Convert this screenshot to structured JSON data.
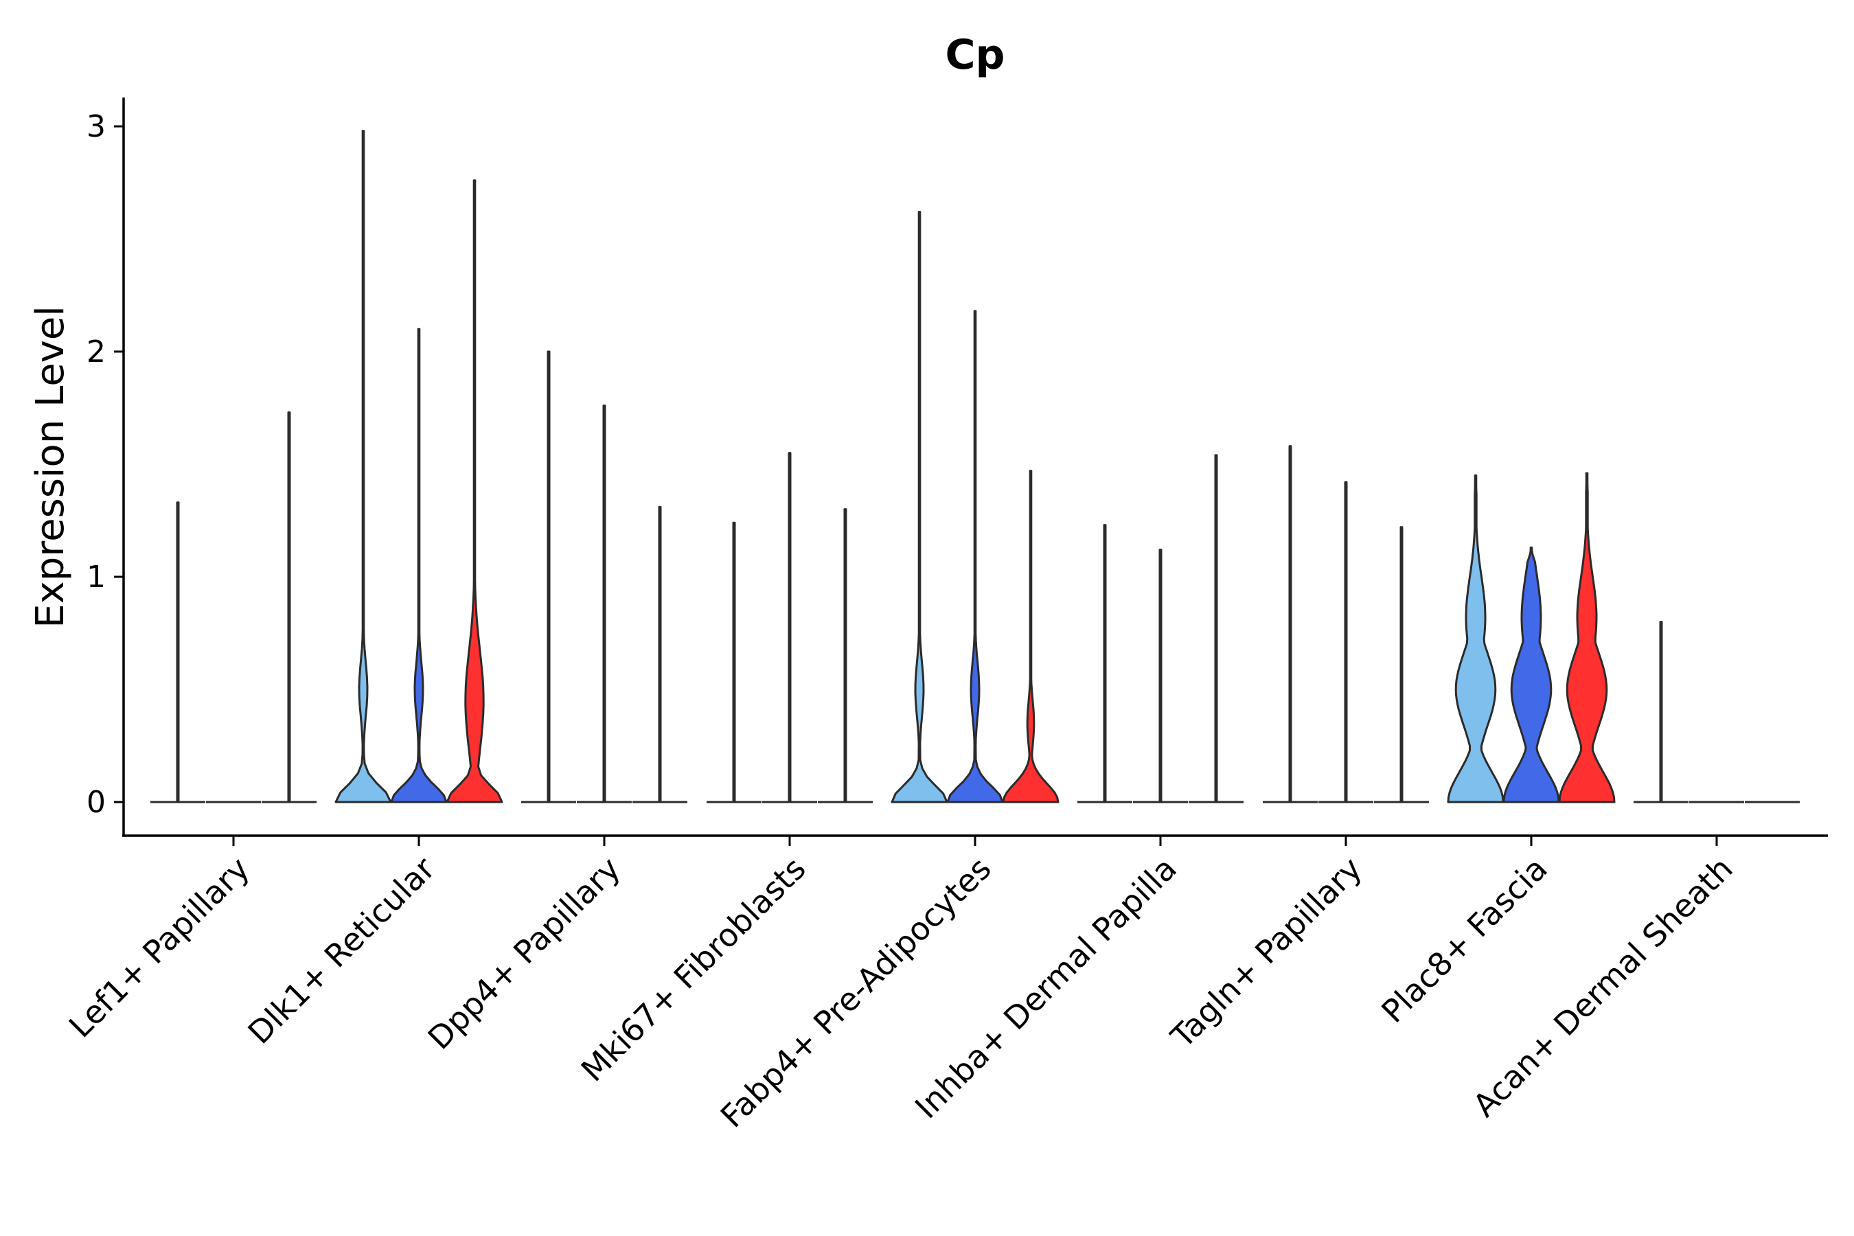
{
  "chart_data": {
    "type": "violin",
    "title": "Cp",
    "xlabel": "",
    "ylabel": "Expression Level",
    "ylim": [
      -0.15,
      3.15
    ],
    "yticks": [
      0,
      1,
      2,
      3
    ],
    "categories": [
      "Lef1+ Papillary",
      "Dlk1+ Reticular",
      "Dpp4+ Papillary",
      "Mki67+ Fibroblasts",
      "Fabp4+ Pre-Adipocytes",
      "Inhba+ Dermal Papilla",
      "Tagln+ Papillary",
      "Plac8+ Fascia",
      "Acan+ Dermal Sheath"
    ],
    "groups": [
      {
        "name": "group-1",
        "color": "#7fbfed"
      },
      {
        "name": "group-2",
        "color": "#4169e8"
      },
      {
        "name": "group-3",
        "color": "#ff3030"
      }
    ],
    "series": [
      {
        "category": "Lef1+ Papillary",
        "violins": [
          {
            "group": "group-1",
            "max": 1.33,
            "width": 0.01,
            "shape": "flat"
          },
          {
            "group": "group-2",
            "max": 0.0,
            "width": 0.0,
            "shape": "flat"
          },
          {
            "group": "group-3",
            "max": 1.73,
            "width": 0.01,
            "shape": "flat"
          }
        ]
      },
      {
        "category": "Dlk1+ Reticular",
        "violins": [
          {
            "group": "group-1",
            "max": 2.98,
            "width": 1.0,
            "shape": "bimodal"
          },
          {
            "group": "group-2",
            "max": 2.1,
            "width": 1.0,
            "shape": "bimodal"
          },
          {
            "group": "group-3",
            "max": 2.76,
            "width": 1.0,
            "shape": "bimodal-hi"
          }
        ]
      },
      {
        "category": "Dpp4+ Papillary",
        "violins": [
          {
            "group": "group-1",
            "max": 2.0,
            "width": 0.01,
            "shape": "flat"
          },
          {
            "group": "group-2",
            "max": 1.76,
            "width": 0.01,
            "shape": "flat"
          },
          {
            "group": "group-3",
            "max": 1.31,
            "width": 0.01,
            "shape": "flat"
          }
        ]
      },
      {
        "category": "Mki67+ Fibroblasts",
        "violins": [
          {
            "group": "group-1",
            "max": 1.24,
            "width": 0.01,
            "shape": "flat"
          },
          {
            "group": "group-2",
            "max": 1.55,
            "width": 0.01,
            "shape": "flat"
          },
          {
            "group": "group-3",
            "max": 1.3,
            "width": 0.01,
            "shape": "flat"
          }
        ]
      },
      {
        "category": "Fabp4+ Pre-Adipocytes",
        "violins": [
          {
            "group": "group-1",
            "max": 2.62,
            "width": 1.0,
            "shape": "bimodal"
          },
          {
            "group": "group-2",
            "max": 2.18,
            "width": 1.0,
            "shape": "bimodal"
          },
          {
            "group": "group-3",
            "max": 1.47,
            "width": 1.0,
            "shape": "bimodal-lo"
          }
        ]
      },
      {
        "category": "Inhba+ Dermal Papilla",
        "violins": [
          {
            "group": "group-1",
            "max": 1.23,
            "width": 0.01,
            "shape": "flat"
          },
          {
            "group": "group-2",
            "max": 1.12,
            "width": 0.01,
            "shape": "flat"
          },
          {
            "group": "group-3",
            "max": 1.54,
            "width": 0.01,
            "shape": "flat"
          }
        ]
      },
      {
        "category": "Tagln+ Papillary",
        "violins": [
          {
            "group": "group-1",
            "max": 1.58,
            "width": 0.01,
            "shape": "flat"
          },
          {
            "group": "group-2",
            "max": 1.42,
            "width": 0.01,
            "shape": "flat"
          },
          {
            "group": "group-3",
            "max": 1.22,
            "width": 0.01,
            "shape": "flat"
          }
        ]
      },
      {
        "category": "Plac8+ Fascia",
        "violins": [
          {
            "group": "group-1",
            "max": 1.45,
            "width": 1.0,
            "shape": "wide"
          },
          {
            "group": "group-2",
            "max": 1.13,
            "width": 1.0,
            "shape": "wide"
          },
          {
            "group": "group-3",
            "max": 1.46,
            "width": 1.0,
            "shape": "wide"
          }
        ]
      },
      {
        "category": "Acan+ Dermal Sheath",
        "violins": [
          {
            "group": "group-1",
            "max": 0.8,
            "width": 0.01,
            "shape": "flat"
          },
          {
            "group": "group-2",
            "max": 0.0,
            "width": 0.0,
            "shape": "flat"
          },
          {
            "group": "group-3",
            "max": 0.0,
            "width": 0.0,
            "shape": "flat"
          }
        ]
      }
    ]
  }
}
